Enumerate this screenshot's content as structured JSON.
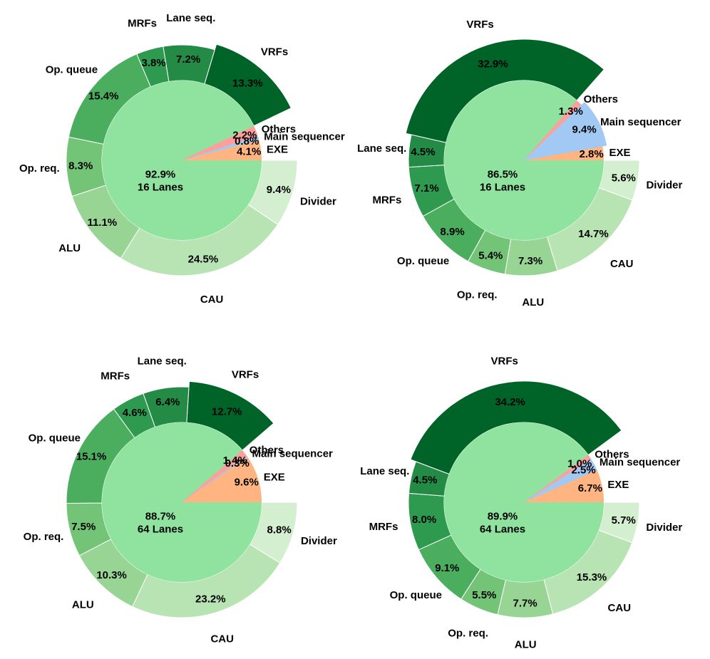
{
  "colors": {
    "core": "#8fe39e",
    "VRFs": "#006428",
    "Lane seq.": "#238b45",
    "MRFs": "#2e9a4f",
    "Op. queue": "#4aae5e",
    "Op. req.": "#73c476",
    "ALU": "#98d594",
    "CAU": "#b8e3b3",
    "Divider": "#d4efcf",
    "EXE": "#ffb482",
    "Main sequencer": "#a1c9f4",
    "Others": "#ff9f9b"
  },
  "chart_data": [
    {
      "type": "pie",
      "center_label": [
        "92.9%",
        "16 Lanes"
      ],
      "inner_slices": [
        {
          "name": "EXE",
          "value": 4.1,
          "label": "4.1%"
        },
        {
          "name": "Main sequencer",
          "value": 0.8,
          "label": "0.8%"
        },
        {
          "name": "Others",
          "value": 2.2,
          "label": "2.2%"
        }
      ],
      "outer_slices": [
        {
          "name": "Divider",
          "value": 9.4,
          "label": "9.4%"
        },
        {
          "name": "CAU",
          "value": 24.5,
          "label": "24.5%"
        },
        {
          "name": "ALU",
          "value": 11.1,
          "label": "11.1%"
        },
        {
          "name": "Op. req.",
          "value": 8.3,
          "label": "8.3%"
        },
        {
          "name": "Op. queue",
          "value": 15.4,
          "label": "15.4%"
        },
        {
          "name": "MRFs",
          "value": 3.8,
          "label": "3.8%"
        },
        {
          "name": "Lane seq.",
          "value": 7.2,
          "label": "7.2%"
        },
        {
          "name": "VRFs",
          "value": 13.3,
          "label": "13.3%"
        }
      ]
    },
    {
      "type": "pie",
      "center_label": [
        "86.5%",
        "16 Lanes"
      ],
      "inner_slices": [
        {
          "name": "EXE",
          "value": 2.8,
          "label": "2.8%"
        },
        {
          "name": "Main sequencer",
          "value": 9.4,
          "label": "9.4%"
        },
        {
          "name": "Others",
          "value": 1.3,
          "label": "1.3%"
        }
      ],
      "outer_slices": [
        {
          "name": "Divider",
          "value": 5.6,
          "label": "5.6%"
        },
        {
          "name": "CAU",
          "value": 14.7,
          "label": "14.7%"
        },
        {
          "name": "ALU",
          "value": 7.3,
          "label": "7.3%"
        },
        {
          "name": "Op. req.",
          "value": 5.4,
          "label": "5.4%"
        },
        {
          "name": "Op. queue",
          "value": 8.9,
          "label": "8.9%"
        },
        {
          "name": "MRFs",
          "value": 7.1,
          "label": "7.1%"
        },
        {
          "name": "Lane seq.",
          "value": 4.5,
          "label": "4.5%"
        },
        {
          "name": "VRFs",
          "value": 32.9,
          "label": "32.9%"
        }
      ]
    },
    {
      "type": "pie",
      "center_label": [
        "88.7%",
        "64 Lanes"
      ],
      "inner_slices": [
        {
          "name": "EXE",
          "value": 9.6,
          "label": "9.6%"
        },
        {
          "name": "Main sequencer",
          "value": 0.3,
          "label": "0.3%"
        },
        {
          "name": "Others",
          "value": 1.4,
          "label": "1.4%"
        }
      ],
      "outer_slices": [
        {
          "name": "Divider",
          "value": 8.8,
          "label": "8.8%"
        },
        {
          "name": "CAU",
          "value": 23.2,
          "label": "23.2%"
        },
        {
          "name": "ALU",
          "value": 10.3,
          "label": "10.3%"
        },
        {
          "name": "Op. req.",
          "value": 7.5,
          "label": "7.5%"
        },
        {
          "name": "Op. queue",
          "value": 15.1,
          "label": "15.1%"
        },
        {
          "name": "MRFs",
          "value": 4.6,
          "label": "4.6%"
        },
        {
          "name": "Lane seq.",
          "value": 6.4,
          "label": "6.4%"
        },
        {
          "name": "VRFs",
          "value": 12.7,
          "label": "12.7%"
        }
      ]
    },
    {
      "type": "pie",
      "center_label": [
        "89.9%",
        "64 Lanes"
      ],
      "inner_slices": [
        {
          "name": "EXE",
          "value": 6.7,
          "label": "6.7%"
        },
        {
          "name": "Main sequencer",
          "value": 2.5,
          "label": "2.5%"
        },
        {
          "name": "Others",
          "value": 1.0,
          "label": "1.0%"
        }
      ],
      "outer_slices": [
        {
          "name": "Divider",
          "value": 5.7,
          "label": "5.7%"
        },
        {
          "name": "CAU",
          "value": 15.3,
          "label": "15.3%"
        },
        {
          "name": "ALU",
          "value": 7.7,
          "label": "7.7%"
        },
        {
          "name": "Op. req.",
          "value": 5.5,
          "label": "5.5%"
        },
        {
          "name": "Op. queue",
          "value": 9.1,
          "label": "9.1%"
        },
        {
          "name": "MRFs",
          "value": 8.0,
          "label": "8.0%"
        },
        {
          "name": "Lane seq.",
          "value": 4.5,
          "label": "4.5%"
        },
        {
          "name": "VRFs",
          "value": 34.2,
          "label": "34.2%"
        }
      ]
    }
  ]
}
